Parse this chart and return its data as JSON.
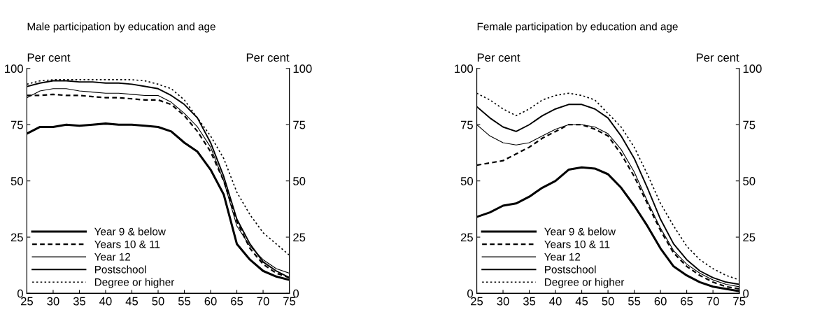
{
  "chart_data": [
    {
      "type": "line",
      "title": "Male participation by education and age",
      "ylabel": "Per cent",
      "y2label": "Per cent",
      "x": [
        25,
        27.5,
        30,
        32.5,
        35,
        37.5,
        40,
        42.5,
        45,
        47.5,
        50,
        52.5,
        55,
        57.5,
        60,
        62.5,
        65,
        67.5,
        70,
        72.5,
        75
      ],
      "xlim": [
        25,
        75
      ],
      "xticks": [
        25,
        30,
        35,
        40,
        45,
        50,
        55,
        60,
        65,
        70,
        75
      ],
      "ylim": [
        0,
        100
      ],
      "yticks": [
        0,
        25,
        50,
        75,
        100
      ],
      "y2lim": [
        0,
        100
      ],
      "y2ticks": [
        0,
        25,
        50,
        75,
        100
      ],
      "grid": false,
      "legend": "bottom left",
      "series": [
        {
          "name": "Year 9 & below",
          "color": "#000000",
          "line_style": "solid",
          "values": [
            71,
            74,
            74,
            75,
            74.5,
            75,
            75.5,
            75,
            75,
            74.5,
            74,
            72,
            67,
            63,
            55,
            44,
            22,
            15,
            10,
            7.5,
            6
          ]
        },
        {
          "name": "Years 10 & 11",
          "color": "#000000",
          "line_style": "dashed",
          "values": [
            88,
            88,
            88.5,
            88,
            88,
            87.5,
            87,
            87,
            86.5,
            86,
            86,
            84,
            79,
            72,
            63,
            50,
            32,
            20,
            13,
            9,
            7
          ]
        },
        {
          "name": "Year 12",
          "color": "#000000",
          "line_style": "solid",
          "values": [
            87,
            90,
            91,
            91,
            90,
            89.5,
            89,
            89,
            88.5,
            88,
            88,
            85,
            80,
            74,
            65,
            50,
            30,
            21,
            15,
            11,
            9
          ]
        },
        {
          "name": "Postschool",
          "color": "#000000",
          "line_style": "solid",
          "values": [
            92,
            93.5,
            94.5,
            94.5,
            94,
            94,
            93.5,
            93.5,
            93,
            92,
            91,
            88,
            84,
            78,
            67,
            52,
            33,
            22,
            14,
            10,
            7
          ]
        },
        {
          "name": "Degree or higher",
          "color": "#000000",
          "line_style": "dotted",
          "values": [
            93,
            94.5,
            95,
            95,
            95,
            95,
            95,
            95,
            95,
            94.5,
            93,
            91,
            86,
            78,
            70,
            60,
            45,
            35,
            27,
            22,
            17
          ]
        }
      ]
    },
    {
      "type": "line",
      "title": "Female participation by education and age",
      "ylabel": "Per cent",
      "y2label": "Per cent",
      "x": [
        25,
        27.5,
        30,
        32.5,
        35,
        37.5,
        40,
        42.5,
        45,
        47.5,
        50,
        52.5,
        55,
        57.5,
        60,
        62.5,
        65,
        67.5,
        70,
        72.5,
        75
      ],
      "xlim": [
        25,
        75
      ],
      "xticks": [
        25,
        30,
        35,
        40,
        45,
        50,
        55,
        60,
        65,
        70,
        75
      ],
      "ylim": [
        0,
        100
      ],
      "yticks": [
        0,
        25,
        50,
        75,
        100
      ],
      "y2lim": [
        0,
        100
      ],
      "y2ticks": [
        0,
        25,
        50,
        75,
        100
      ],
      "grid": false,
      "legend": "bottom left",
      "series": [
        {
          "name": "Year 9 & below",
          "color": "#000000",
          "line_style": "solid",
          "values": [
            34,
            36,
            39,
            40,
            43,
            47,
            50,
            55,
            56,
            55.5,
            53,
            47,
            39,
            30,
            20,
            12,
            8,
            5,
            3,
            2,
            1
          ]
        },
        {
          "name": "Years 10 & 11",
          "color": "#000000",
          "line_style": "dashed",
          "values": [
            57,
            58,
            59,
            62,
            65,
            69,
            72,
            75,
            75,
            73,
            70,
            62,
            52,
            40,
            28,
            18,
            12,
            8,
            5,
            3,
            2
          ]
        },
        {
          "name": "Year 12",
          "color": "#000000",
          "line_style": "solid",
          "values": [
            75,
            70,
            67,
            66,
            67,
            70,
            73,
            75,
            75,
            74,
            71,
            64,
            54,
            41,
            29,
            19,
            13,
            9,
            6,
            4,
            3
          ]
        },
        {
          "name": "Postschool",
          "color": "#000000",
          "line_style": "solid",
          "values": [
            83,
            78,
            74,
            72,
            75,
            79,
            82,
            84,
            84,
            82,
            78,
            70,
            60,
            47,
            33,
            22,
            15,
            10,
            7,
            5,
            4
          ]
        },
        {
          "name": "Degree or higher",
          "color": "#000000",
          "line_style": "dotted",
          "values": [
            89,
            86,
            82,
            79,
            82,
            86,
            88,
            89,
            88,
            86,
            80,
            74,
            65,
            53,
            40,
            30,
            21,
            15,
            11,
            8,
            6
          ]
        }
      ]
    }
  ]
}
